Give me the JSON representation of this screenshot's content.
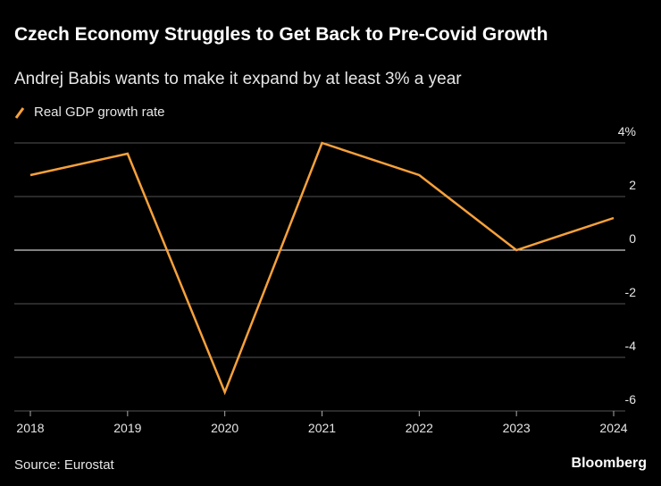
{
  "chart_data": {
    "type": "line",
    "title": "Czech Economy Struggles to Get Back to Pre-Covid Growth",
    "subtitle": "Andrej Babis wants to make it expand by at least 3% a year",
    "x": [
      2018,
      2019,
      2020,
      2021,
      2022,
      2023,
      2024
    ],
    "xlim": [
      2018,
      2024
    ],
    "xticks": [
      2018,
      2019,
      2020,
      2021,
      2022,
      2023,
      2024
    ],
    "series": [
      {
        "name": "Real GDP growth rate",
        "color": "#f7a13b",
        "values": [
          2.8,
          3.6,
          -5.3,
          4.0,
          2.8,
          0.0,
          1.2
        ]
      }
    ],
    "ylim": [
      -6,
      4
    ],
    "yticks": [
      {
        "value": 4,
        "label": "4%"
      },
      2,
      0,
      -2,
      -4,
      -6
    ],
    "grid": true,
    "source": "Source: Eurostat",
    "brand": "Bloomberg"
  }
}
